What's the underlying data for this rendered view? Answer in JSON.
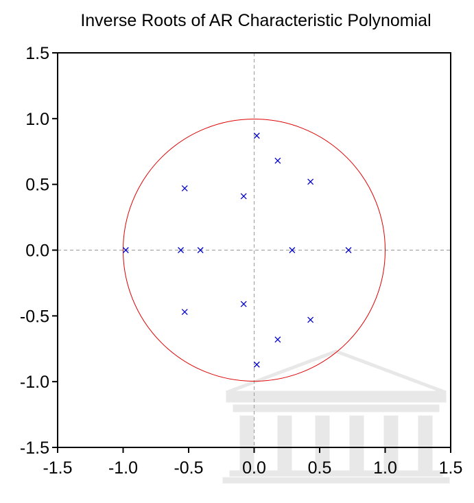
{
  "chart_data": {
    "type": "scatter",
    "title": "Inverse Roots of AR Characteristic Polynomial",
    "xlabel": "",
    "ylabel": "",
    "xlim": [
      -1.5,
      1.5
    ],
    "ylim": [
      -1.5,
      1.5
    ],
    "xticks": [
      "-1.5",
      "-1.0",
      "-0.5",
      "0.0",
      "0.5",
      "1.0",
      "1.5"
    ],
    "yticks": [
      "1.5",
      "1.0",
      "0.5",
      "0.0",
      "-0.5",
      "-1.0",
      "-1.5"
    ],
    "xtick_values": [
      -1.5,
      -1.0,
      -0.5,
      0.0,
      0.5,
      1.0,
      1.5
    ],
    "ytick_values": [
      1.5,
      1.0,
      0.5,
      0.0,
      -0.5,
      -1.0,
      -1.5
    ],
    "grid": false,
    "reference_lines": {
      "x": 0,
      "y": 0,
      "style": "dashed",
      "color": "#999999"
    },
    "unit_circle": {
      "radius": 1,
      "color": "#e00000"
    },
    "marker": "x",
    "marker_color": "#0000cc",
    "points": [
      {
        "x": 0.02,
        "y": 0.87
      },
      {
        "x": 0.18,
        "y": 0.68
      },
      {
        "x": 0.43,
        "y": 0.52
      },
      {
        "x": -0.53,
        "y": 0.47
      },
      {
        "x": -0.08,
        "y": 0.41
      },
      {
        "x": -0.98,
        "y": 0.0
      },
      {
        "x": -0.56,
        "y": 0.0
      },
      {
        "x": -0.41,
        "y": 0.0
      },
      {
        "x": 0.29,
        "y": 0.0
      },
      {
        "x": 0.72,
        "y": 0.0
      },
      {
        "x": -0.08,
        "y": -0.41
      },
      {
        "x": -0.53,
        "y": -0.47
      },
      {
        "x": 0.43,
        "y": -0.53
      },
      {
        "x": 0.18,
        "y": -0.68
      },
      {
        "x": 0.02,
        "y": -0.87
      }
    ]
  }
}
